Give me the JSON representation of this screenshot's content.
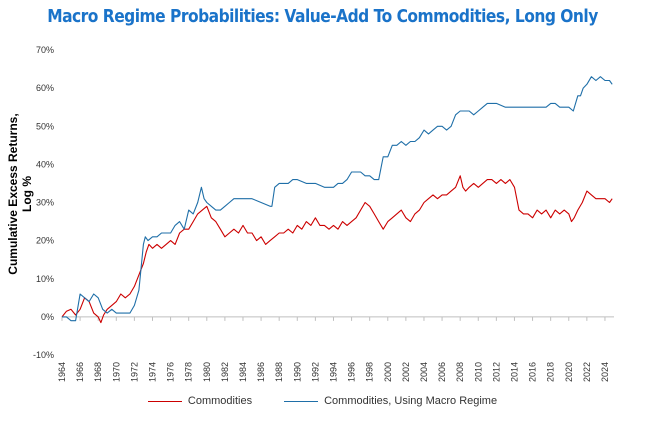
{
  "chart_data": {
    "type": "line",
    "title": "Macro Regime Probabilities: Value-Add To Commodities, Long Only",
    "ylabel": "Cumulative Excess Returns, Log %",
    "xlabel": "",
    "ylim": [
      -10,
      70
    ],
    "xlim": [
      1964,
      2025
    ],
    "y_ticks": [
      "-10%",
      "0%",
      "10%",
      "20%",
      "30%",
      "40%",
      "50%",
      "60%",
      "70%"
    ],
    "y_tick_values": [
      -10,
      0,
      10,
      20,
      30,
      40,
      50,
      60,
      70
    ],
    "x_ticks": [
      "1964",
      "1966",
      "1968",
      "1970",
      "1972",
      "1974",
      "1976",
      "1978",
      "1980",
      "1982",
      "1984",
      "1986",
      "1988",
      "1990",
      "1992",
      "1994",
      "1996",
      "1998",
      "2000",
      "2002",
      "2004",
      "2006",
      "2008",
      "2010",
      "2012",
      "2014",
      "2016",
      "2018",
      "2020",
      "2022",
      "2024"
    ],
    "grid": false,
    "legend_position": "bottom",
    "series": [
      {
        "name": "Commodities",
        "color": "#cc0000",
        "x": [
          1964.0,
          1964.5,
          1965.0,
          1965.5,
          1966.0,
          1966.5,
          1967.0,
          1967.5,
          1968.0,
          1968.3,
          1968.6,
          1969.0,
          1969.5,
          1970.0,
          1970.5,
          1971.0,
          1971.5,
          1972.0,
          1972.5,
          1973.0,
          1973.3,
          1973.6,
          1974.0,
          1974.5,
          1975.0,
          1975.5,
          1976.0,
          1976.5,
          1977.0,
          1977.5,
          1978.0,
          1978.5,
          1979.0,
          1979.5,
          1980.0,
          1980.5,
          1981.0,
          1981.5,
          1982.0,
          1982.5,
          1983.0,
          1983.5,
          1984.0,
          1984.5,
          1985.0,
          1985.5,
          1986.0,
          1986.5,
          1987.0,
          1987.5,
          1988.0,
          1988.5,
          1989.0,
          1989.5,
          1990.0,
          1990.5,
          1991.0,
          1991.5,
          1992.0,
          1992.5,
          1993.0,
          1993.5,
          1994.0,
          1994.5,
          1995.0,
          1995.5,
          1996.0,
          1996.5,
          1997.0,
          1997.5,
          1998.0,
          1998.5,
          1999.0,
          1999.5,
          2000.0,
          2000.5,
          2001.0,
          2001.5,
          2002.0,
          2002.5,
          2003.0,
          2003.5,
          2004.0,
          2004.5,
          2005.0,
          2005.5,
          2006.0,
          2006.5,
          2007.0,
          2007.5,
          2008.0,
          2008.3,
          2008.6,
          2009.0,
          2009.5,
          2010.0,
          2010.5,
          2011.0,
          2011.5,
          2012.0,
          2012.5,
          2013.0,
          2013.5,
          2014.0,
          2014.5,
          2015.0,
          2015.5,
          2016.0,
          2016.5,
          2017.0,
          2017.5,
          2018.0,
          2018.5,
          2019.0,
          2019.5,
          2020.0,
          2020.3,
          2020.6,
          2021.0,
          2021.5,
          2022.0,
          2022.5,
          2023.0,
          2023.5,
          2024.0,
          2024.5,
          2024.8
        ],
        "values": [
          0,
          1.5,
          2,
          0.5,
          2,
          5,
          4,
          1,
          0,
          -1.5,
          0.5,
          2,
          3,
          4,
          6,
          5,
          6,
          8,
          11,
          14,
          17,
          19,
          18,
          19,
          18,
          19,
          20,
          19,
          22,
          23,
          23,
          25,
          27,
          28,
          29,
          26,
          25,
          23,
          21,
          22,
          23,
          22,
          24,
          22,
          22,
          20,
          21,
          19,
          20,
          21,
          22,
          22,
          23,
          22,
          24,
          23,
          25,
          24,
          26,
          24,
          24,
          23,
          24,
          23,
          25,
          24,
          25,
          26,
          28,
          30,
          29,
          27,
          25,
          23,
          25,
          26,
          27,
          28,
          26,
          25,
          27,
          28,
          30,
          31,
          32,
          31,
          32,
          32,
          33,
          34,
          37,
          34,
          33,
          34,
          35,
          34,
          35,
          36,
          36,
          35,
          36,
          35,
          36,
          34,
          28,
          27,
          27,
          26,
          28,
          27,
          28,
          26,
          28,
          27,
          28,
          27,
          25,
          26,
          28,
          30,
          33,
          32,
          31,
          31,
          31,
          30,
          31
        ]
      },
      {
        "name": "Commodities, Using Macro Regime",
        "color": "#1f6fa8",
        "x": [
          1964.0,
          1964.5,
          1965.0,
          1965.5,
          1966.0,
          1966.5,
          1967.0,
          1967.5,
          1968.0,
          1968.5,
          1969.0,
          1969.5,
          1970.0,
          1970.5,
          1971.0,
          1971.5,
          1972.0,
          1972.5,
          1973.0,
          1973.2,
          1973.5,
          1974.0,
          1974.5,
          1975.0,
          1975.5,
          1976.0,
          1976.5,
          1977.0,
          1977.5,
          1978.0,
          1978.5,
          1979.0,
          1979.4,
          1979.7,
          1980.0,
          1980.5,
          1981.0,
          1981.5,
          1982.0,
          1982.5,
          1983.0,
          1984.0,
          1985.0,
          1986.0,
          1987.0,
          1987.2,
          1987.5,
          1988.0,
          1989.0,
          1989.5,
          1990.0,
          1991.0,
          1992.0,
          1993.0,
          1994.0,
          1994.5,
          1995.0,
          1995.5,
          1996.0,
          1997.0,
          1997.5,
          1998.0,
          1998.5,
          1999.0,
          1999.5,
          2000.0,
          2000.5,
          2001.0,
          2001.5,
          2002.0,
          2002.5,
          2003.0,
          2003.5,
          2004.0,
          2004.5,
          2005.0,
          2005.5,
          2006.0,
          2006.5,
          2007.0,
          2007.5,
          2008.0,
          2008.5,
          2009.0,
          2009.5,
          2010.0,
          2010.5,
          2011.0,
          2012.0,
          2013.0,
          2014.0,
          2015.0,
          2016.0,
          2017.0,
          2017.5,
          2018.0,
          2018.5,
          2019.0,
          2019.5,
          2020.0,
          2020.5,
          2021.0,
          2021.3,
          2021.6,
          2022.0,
          2022.5,
          2023.0,
          2023.5,
          2024.0,
          2024.5,
          2024.8
        ],
        "values": [
          0,
          0,
          -1,
          -1,
          6,
          5,
          4,
          6,
          5,
          2,
          1,
          2,
          1,
          1,
          1,
          1,
          3,
          7,
          19,
          21,
          20,
          21,
          21,
          22,
          22,
          22,
          24,
          25,
          23,
          28,
          27,
          30,
          34,
          31,
          30,
          29,
          28,
          28,
          29,
          30,
          31,
          31,
          31,
          30,
          29,
          29,
          34,
          35,
          35,
          36,
          36,
          35,
          35,
          34,
          34,
          35,
          35,
          36,
          38,
          38,
          37,
          37,
          36,
          36,
          42,
          42,
          45,
          45,
          46,
          45,
          46,
          46,
          47,
          49,
          48,
          49,
          50,
          50,
          49,
          50,
          53,
          54,
          54,
          54,
          53,
          54,
          55,
          56,
          56,
          55,
          55,
          55,
          55,
          55,
          55,
          56,
          56,
          55,
          55,
          55,
          54,
          58,
          58,
          60,
          61,
          63,
          62,
          63,
          62,
          62,
          61
        ]
      }
    ]
  }
}
